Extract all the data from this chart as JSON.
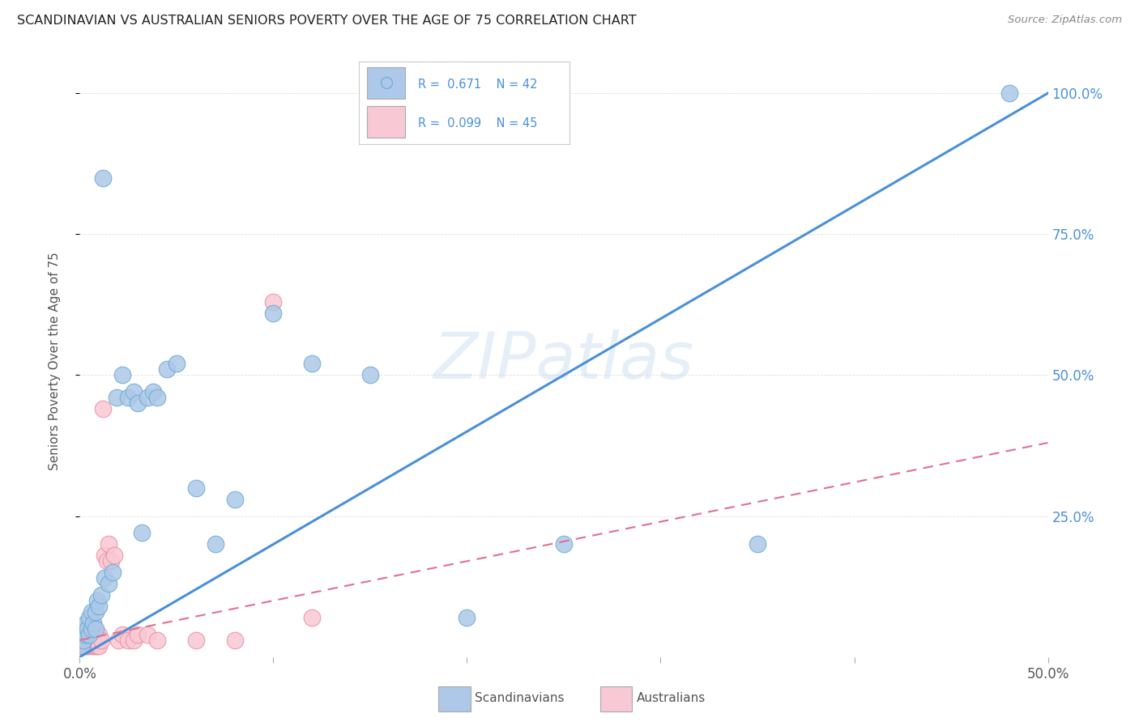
{
  "title": "SCANDINAVIAN VS AUSTRALIAN SENIORS POVERTY OVER THE AGE OF 75 CORRELATION CHART",
  "source": "Source: ZipAtlas.com",
  "ylabel": "Seniors Poverty Over the Age of 75",
  "right_yticks": [
    "100.0%",
    "75.0%",
    "50.0%",
    "25.0%"
  ],
  "right_ytick_vals": [
    1.0,
    0.75,
    0.5,
    0.25
  ],
  "scandinavians": {
    "R": 0.671,
    "N": 42,
    "color": "#adc8e8",
    "edge_color": "#6aaad4",
    "line_color": "#4a90d9",
    "label": "Scandinavians",
    "x": [
      0.001,
      0.001,
      0.002,
      0.002,
      0.003,
      0.003,
      0.004,
      0.005,
      0.005,
      0.006,
      0.006,
      0.007,
      0.008,
      0.008,
      0.009,
      0.01,
      0.011,
      0.012,
      0.013,
      0.015,
      0.017,
      0.019,
      0.022,
      0.025,
      0.028,
      0.03,
      0.032,
      0.035,
      0.038,
      0.04,
      0.045,
      0.05,
      0.06,
      0.07,
      0.08,
      0.1,
      0.12,
      0.15,
      0.2,
      0.25,
      0.35,
      0.48
    ],
    "y": [
      0.02,
      0.04,
      0.03,
      0.05,
      0.04,
      0.06,
      0.05,
      0.04,
      0.07,
      0.05,
      0.08,
      0.06,
      0.05,
      0.08,
      0.1,
      0.09,
      0.11,
      0.85,
      0.14,
      0.13,
      0.15,
      0.46,
      0.5,
      0.46,
      0.47,
      0.45,
      0.22,
      0.46,
      0.47,
      0.46,
      0.51,
      0.52,
      0.3,
      0.2,
      0.28,
      0.61,
      0.52,
      0.5,
      0.07,
      0.2,
      0.2,
      1.0
    ]
  },
  "australians": {
    "R": 0.099,
    "N": 45,
    "color": "#f8c8d4",
    "edge_color": "#e8909e",
    "line_color": "#e07090",
    "label": "Australians",
    "x": [
      0.001,
      0.001,
      0.001,
      0.002,
      0.002,
      0.002,
      0.003,
      0.003,
      0.003,
      0.003,
      0.004,
      0.004,
      0.004,
      0.005,
      0.005,
      0.005,
      0.006,
      0.006,
      0.006,
      0.007,
      0.007,
      0.008,
      0.008,
      0.009,
      0.009,
      0.01,
      0.01,
      0.011,
      0.012,
      0.013,
      0.014,
      0.015,
      0.016,
      0.018,
      0.02,
      0.022,
      0.025,
      0.028,
      0.03,
      0.035,
      0.04,
      0.06,
      0.08,
      0.1,
      0.12
    ],
    "y": [
      0.02,
      0.03,
      0.04,
      0.02,
      0.03,
      0.04,
      0.02,
      0.03,
      0.04,
      0.05,
      0.02,
      0.03,
      0.04,
      0.02,
      0.03,
      0.04,
      0.02,
      0.03,
      0.04,
      0.02,
      0.03,
      0.02,
      0.03,
      0.02,
      0.03,
      0.02,
      0.04,
      0.03,
      0.44,
      0.18,
      0.17,
      0.2,
      0.17,
      0.18,
      0.03,
      0.04,
      0.03,
      0.03,
      0.04,
      0.04,
      0.03,
      0.03,
      0.03,
      0.63,
      0.07
    ]
  },
  "xlim": [
    0.0,
    0.5
  ],
  "ylim": [
    0.0,
    1.05
  ],
  "watermark": "ZIPatlas",
  "background_color": "#ffffff",
  "grid_color": "#e0e0e0",
  "sc_reg": [
    0.0,
    2.0
  ],
  "au_reg_slope": 0.72,
  "au_reg_intercept": 0.04
}
